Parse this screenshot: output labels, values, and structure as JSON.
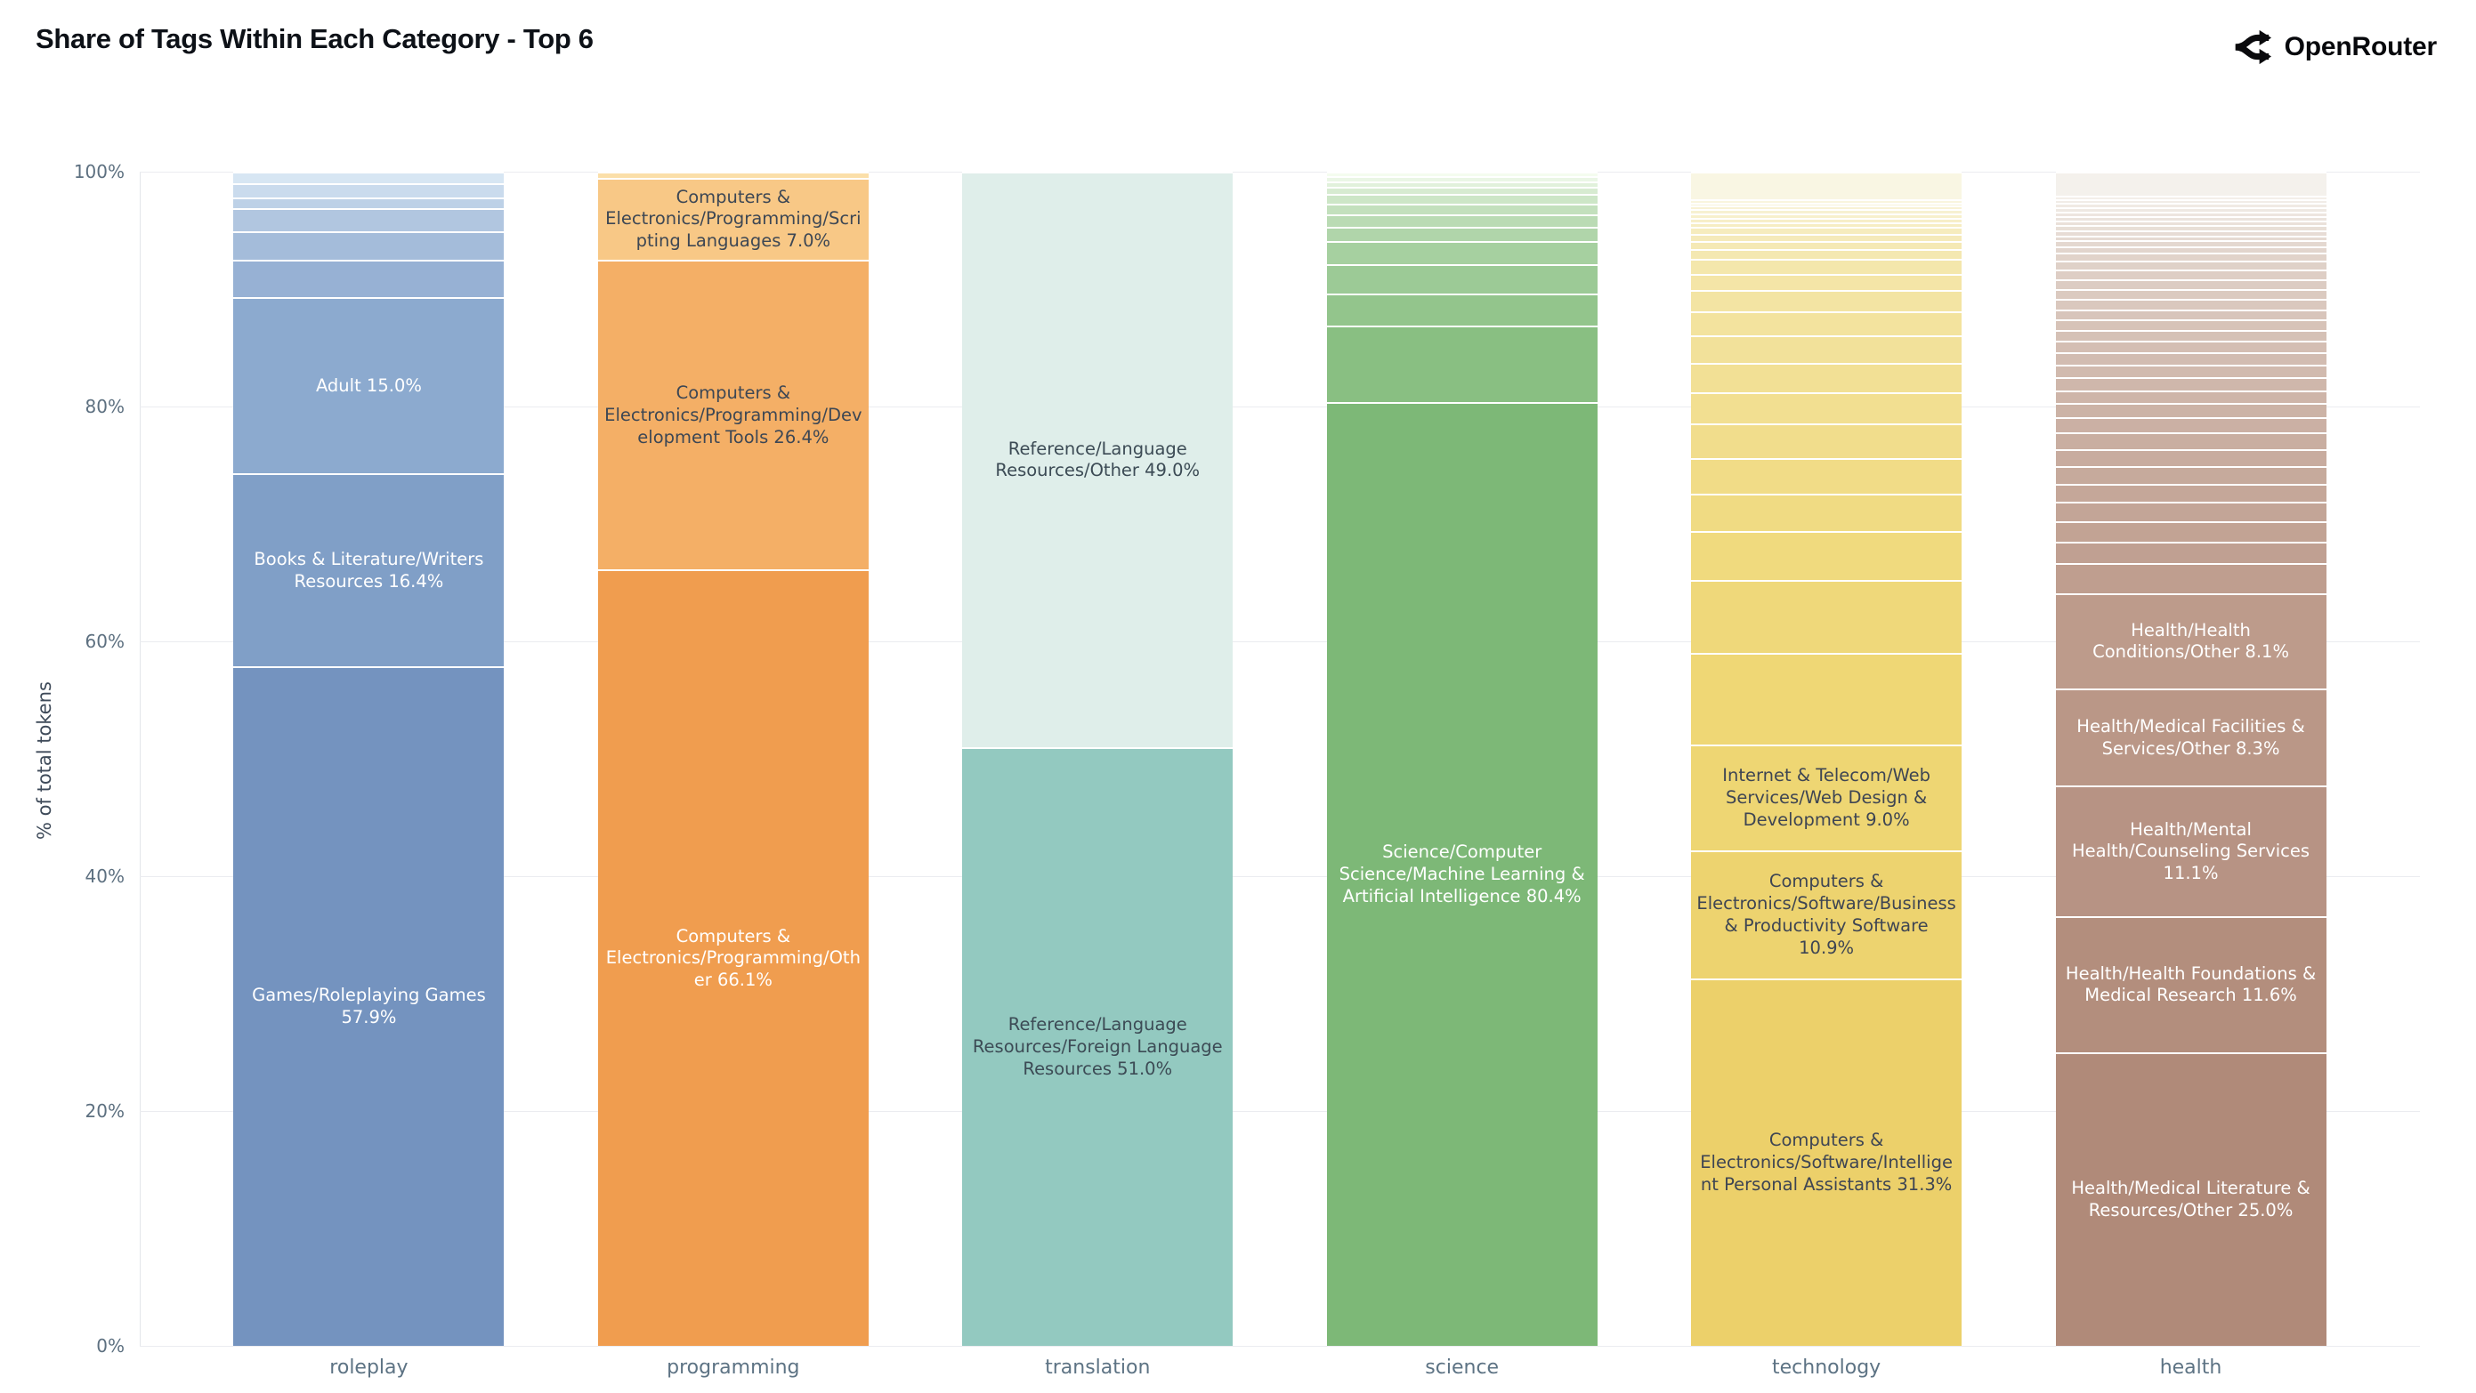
{
  "header": {
    "title": "Share of Tags Within Each Category - Top 6",
    "brand": "OpenRouter"
  },
  "chart_data": {
    "type": "bar",
    "stacked": true,
    "unit": "%",
    "title": "Share of Tags Within Each Category - Top 6",
    "xlabel": "",
    "ylabel": "% of total tokens",
    "ylim": [
      0,
      100
    ],
    "yticks": [
      "0%",
      "20%",
      "40%",
      "60%",
      "80%",
      "100%"
    ],
    "grid": "horizontal at 20% intervals",
    "legend": "none (labels drawn inside segments)",
    "categories": [
      "roleplay",
      "programming",
      "translation",
      "science",
      "technology",
      "health"
    ],
    "bars": [
      {
        "category": "roleplay",
        "labeled": [
          {
            "label": "Games/Roleplaying Games",
            "value": 57.9,
            "color": "#7493bf",
            "text_color": "#ffffff"
          },
          {
            "label": "Books & Literature/Writers Resources",
            "value": 16.4,
            "color": "#809fc7",
            "text_color": "#ffffff"
          },
          {
            "label": "Adult",
            "value": 15.0,
            "color": "#8caacf",
            "text_color": "#ffffff"
          }
        ],
        "filler": {
          "note": "unlabeled minor tags, bottom to top",
          "values": [
            3.2,
            2.4,
            2.0,
            0.9,
            1.2,
            1.0
          ],
          "color_from": "#97b1d4",
          "color_to": "#d7e6f3"
        }
      },
      {
        "category": "programming",
        "labeled": [
          {
            "label": "Computers & Electronics/Programming/Other",
            "value": 66.1,
            "color": "#f09d4f",
            "text_color": "#ffffff"
          },
          {
            "label": "Computers & Electronics/Programming/Development Tools",
            "value": 26.4,
            "color": "#f4af66",
            "text_color": "#3d4754"
          },
          {
            "label": "Computers & Electronics/Programming/Scripting Languages",
            "value": 7.0,
            "color": "#f8c886",
            "text_color": "#3d4754"
          }
        ],
        "filler": {
          "note": "unlabeled minor tags",
          "values": [
            0.5
          ],
          "color_from": "#fbdfa9",
          "color_to": "#fbdfa9"
        }
      },
      {
        "category": "translation",
        "labeled": [
          {
            "label": "Reference/Language Resources/Foreign Language Resources",
            "value": 51.0,
            "color": "#93c9c0",
            "text_color": "#3c4b55"
          },
          {
            "label": "Reference/Language Resources/Other",
            "value": 49.0,
            "color": "#dfeeea",
            "text_color": "#3c4b55"
          }
        ],
        "filler": null
      },
      {
        "category": "science",
        "labeled": [
          {
            "label": "Science/Computer Science/Machine Learning & Artificial Intelligence",
            "value": 80.4,
            "color": "#7db877",
            "text_color": "#ffffff"
          }
        ],
        "filler": {
          "note": "unlabeled minor tags, bottom to top",
          "values": [
            6.5,
            2.7,
            2.5,
            2.0,
            1.2,
            1.1,
            0.9,
            0.8,
            0.6,
            0.5,
            0.4,
            0.4
          ],
          "color_from": "#89bf82",
          "color_to": "#f4fcef"
        }
      },
      {
        "category": "technology",
        "labeled": [
          {
            "label": "Computers & Electronics/Software/Intelligent Personal Assistants",
            "value": 31.3,
            "color": "#ecd06a",
            "text_color": "#3e4553"
          },
          {
            "label": "Computers & Electronics/Software/Business & Productivity Software",
            "value": 10.9,
            "color": "#edd36f",
            "text_color": "#3e4553"
          },
          {
            "label": "Internet & Telecom/Web Services/Web Design & Development",
            "value": 9.0,
            "color": "#eed673",
            "text_color": "#3e4553"
          }
        ],
        "filler": {
          "note": "unlabeled minor tags, bottom to top",
          "values": [
            7.8,
            6.2,
            4.2,
            3.2,
            3.0,
            3.0,
            2.6,
            2.5,
            2.4,
            2.0,
            1.8,
            1.4,
            1.3,
            0.8,
            0.7,
            0.6,
            0.6,
            0.4,
            0.4,
            0.35,
            0.35,
            0.3,
            0.3,
            0.3,
            2.3
          ],
          "color_from": "#efd775",
          "color_to": "#f9f6e3"
        }
      },
      {
        "category": "health",
        "labeled": [
          {
            "label": "Health/Medical Literature & Resources/Other",
            "value": 25.0,
            "color": "#b08a79",
            "text_color": "#ffffff"
          },
          {
            "label": "Health/Health Foundations & Medical Research",
            "value": 11.6,
            "color": "#b38e7d",
            "text_color": "#ffffff"
          },
          {
            "label": "Health/Mental Health/Counseling Services",
            "value": 11.1,
            "color": "#b79384",
            "text_color": "#ffffff"
          },
          {
            "label": "Health/Medical Facilities & Services/Other",
            "value": 8.3,
            "color": "#ba9787",
            "text_color": "#ffffff"
          },
          {
            "label": "Health/Health Conditions/Other",
            "value": 8.1,
            "color": "#bd9b8b",
            "text_color": "#ffffff"
          }
        ],
        "filler": {
          "note": "unlabeled minor tags, bottom to top",
          "values": [
            2.6,
            1.8,
            1.7,
            1.7,
            1.5,
            1.5,
            1.5,
            1.4,
            1.3,
            1.2,
            1.1,
            1.1,
            1.1,
            1.0,
            1.0,
            0.9,
            0.9,
            0.9,
            0.9,
            0.85,
            0.8,
            0.8,
            0.8,
            0.7,
            0.5,
            0.5,
            0.45,
            0.45,
            0.4,
            0.4,
            0.4,
            0.4,
            0.35,
            0.35,
            0.35,
            0.3,
            2.0
          ],
          "color_from": "#bf9e8f",
          "color_to": "#f4f1ec"
        }
      }
    ]
  },
  "colors": {
    "background": "#ffffff",
    "gridline": "#ebecf0",
    "axis_spine": "#e3e6ea",
    "tick_label": "#5d7080",
    "category_label": "#5d7384",
    "title": "#0d1117",
    "segment_divider": "#ffffff"
  },
  "icons": {
    "brand_icon": "openrouter-fork-icon"
  }
}
